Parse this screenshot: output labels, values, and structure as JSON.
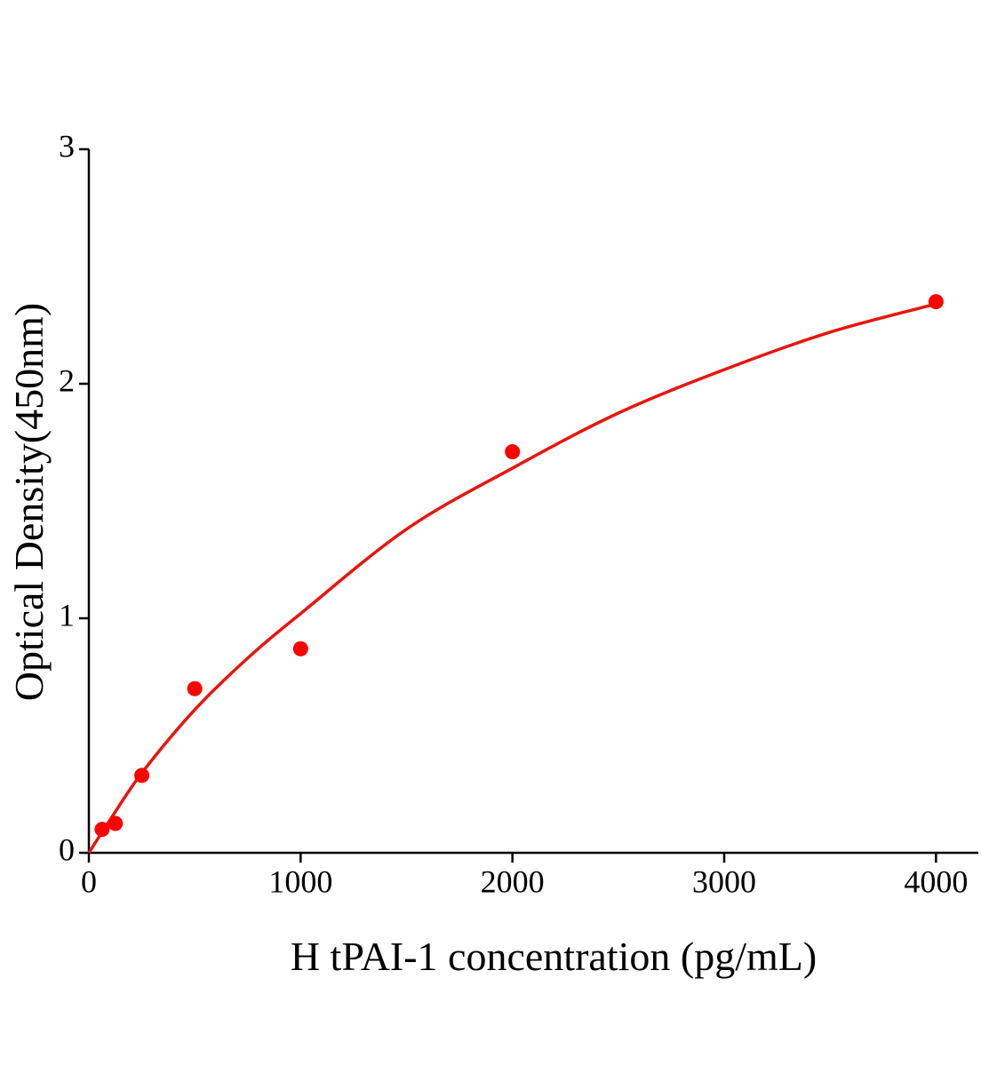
{
  "chart_data": {
    "type": "scatter",
    "xlabel": "H tPAI-1 concentration (pg/mL)",
    "ylabel": "Optical Density(450nm)",
    "xlim": [
      0,
      4200
    ],
    "ylim": [
      0,
      3
    ],
    "xticks": [
      0,
      1000,
      2000,
      3000,
      4000
    ],
    "yticks": [
      0,
      1,
      2,
      3
    ],
    "series": [
      {
        "type": "scatter",
        "color": "#ff0000",
        "x": [
          62.5,
          125,
          250,
          500,
          1000,
          2000,
          4000
        ],
        "values": [
          0.1,
          0.125,
          0.33,
          0.7,
          0.87,
          1.71,
          2.35
        ]
      },
      {
        "type": "line",
        "color": "#e8150f",
        "x": [
          0,
          100,
          250,
          500,
          750,
          1000,
          1500,
          2000,
          2500,
          3000,
          3500,
          4000
        ],
        "values": [
          0,
          0.14,
          0.34,
          0.61,
          0.83,
          1.02,
          1.38,
          1.64,
          1.875,
          2.06,
          2.22,
          2.34
        ]
      }
    ]
  }
}
